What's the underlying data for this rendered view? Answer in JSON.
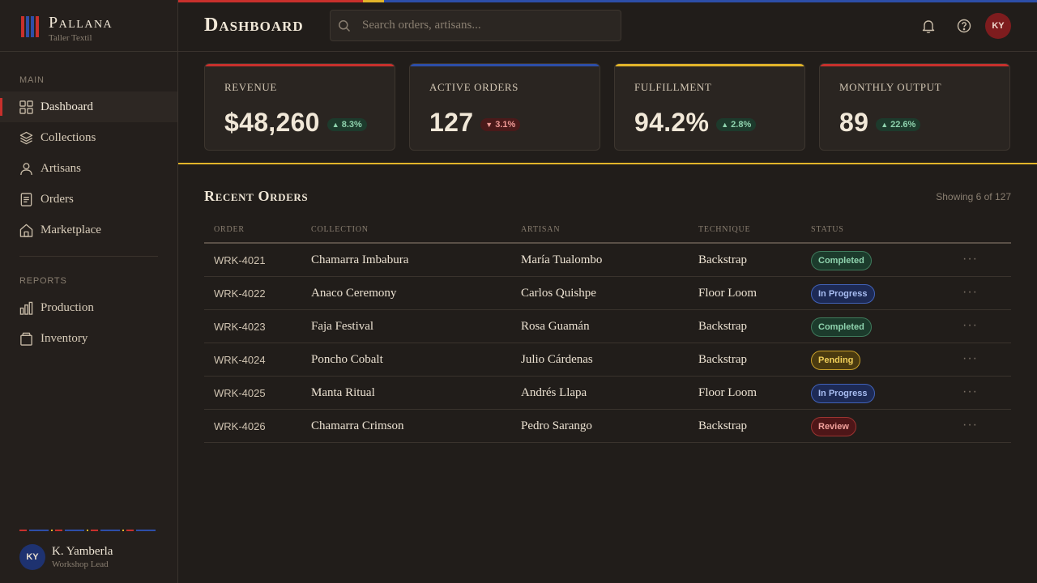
{
  "brand": {
    "name": "Pallana",
    "subtitle": "Taller Textil"
  },
  "colors": {
    "crimson": "#c8302c",
    "cobalt": "#2d4ea8",
    "gold": "#e2b52a",
    "background": "#211d1a"
  },
  "sidebar": {
    "main_label": "MAIN",
    "main_items": [
      {
        "label": "Dashboard",
        "icon": "grid-icon",
        "active": true
      },
      {
        "label": "Collections",
        "icon": "layers-icon"
      },
      {
        "label": "Artisans",
        "icon": "person-icon"
      },
      {
        "label": "Orders",
        "icon": "document-icon"
      },
      {
        "label": "Marketplace",
        "icon": "store-icon"
      }
    ],
    "reports_label": "REPORTS",
    "report_items": [
      {
        "label": "Production",
        "icon": "bar-chart-icon"
      },
      {
        "label": "Inventory",
        "icon": "box-icon"
      }
    ],
    "user": {
      "initials": "KY",
      "name": "K. Yamberla",
      "role": "Workshop Lead"
    }
  },
  "header": {
    "title": "Dashboard",
    "search_placeholder": "Search orders, artisans...",
    "avatar_initials": "KY"
  },
  "stats": [
    {
      "label": "REVENUE",
      "value": "$48,260",
      "delta": "8.3%",
      "direction": "up",
      "accent": "#c8302c"
    },
    {
      "label": "ACTIVE ORDERS",
      "value": "127",
      "delta": "3.1%",
      "direction": "down",
      "accent": "#2d4ea8"
    },
    {
      "label": "FULFILLMENT",
      "value": "94.2%",
      "delta": "2.8%",
      "direction": "up",
      "accent": "#e2b52a"
    },
    {
      "label": "MONTHLY OUTPUT",
      "value": "89",
      "delta": "22.6%",
      "direction": "up",
      "accent": "#c8302c"
    }
  ],
  "orders": {
    "title": "Recent Orders",
    "showing": "Showing 6 of 127",
    "columns": [
      "ORDER",
      "COLLECTION",
      "ARTISAN",
      "TECHNIQUE",
      "STATUS"
    ],
    "rows": [
      {
        "id": "WRK-4021",
        "collection": "Chamarra Imbabura",
        "artisan": "María Tualombo",
        "technique": "Backstrap",
        "status": "Completed"
      },
      {
        "id": "WRK-4022",
        "collection": "Anaco Ceremony",
        "artisan": "Carlos Quishpe",
        "technique": "Floor Loom",
        "status": "In Progress"
      },
      {
        "id": "WRK-4023",
        "collection": "Faja Festival",
        "artisan": "Rosa Guamán",
        "technique": "Backstrap",
        "status": "Completed"
      },
      {
        "id": "WRK-4024",
        "collection": "Poncho Cobalt",
        "artisan": "Julio Cárdenas",
        "technique": "Backstrap",
        "status": "Pending"
      },
      {
        "id": "WRK-4025",
        "collection": "Manta Ritual",
        "artisan": "Andrés Llapa",
        "technique": "Floor Loom",
        "status": "In Progress"
      },
      {
        "id": "WRK-4026",
        "collection": "Chamarra Crimson",
        "artisan": "Pedro Sarango",
        "technique": "Backstrap",
        "status": "Review"
      }
    ]
  }
}
